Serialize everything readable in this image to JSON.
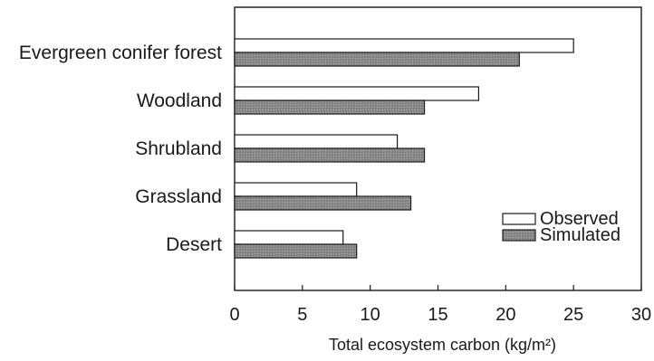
{
  "chart_data": {
    "type": "bar",
    "orientation": "horizontal",
    "categories": [
      "Evergreen conifer forest",
      "Woodland",
      "Shrubland",
      "Grassland",
      "Desert"
    ],
    "series": [
      {
        "name": "Observed",
        "values": [
          25,
          18,
          12,
          9,
          8
        ],
        "color": "#ffffff"
      },
      {
        "name": "Simulated",
        "values": [
          21,
          14,
          14,
          13,
          9
        ],
        "color": "#8c8c8c"
      }
    ],
    "xlabel": "Total ecosystem carbon (kg/m²)",
    "xlim": [
      0,
      30
    ],
    "xticks": [
      "0",
      "5",
      "10",
      "15",
      "20",
      "25",
      "30"
    ],
    "grid": false,
    "legend_position": "lower-right"
  }
}
